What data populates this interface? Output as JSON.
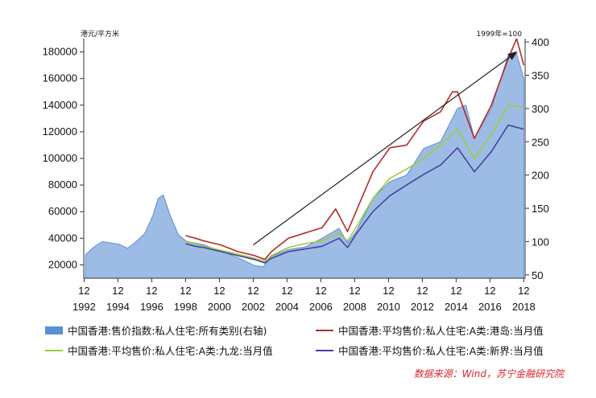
{
  "chart_data": {
    "type": "line",
    "left_axis_unit": "港元/平方米",
    "right_axis_unit": "1999年=100",
    "ylim_left": [
      10000,
      190000
    ],
    "ylim_right": [
      45,
      405
    ],
    "yticks_left": [
      20000,
      40000,
      60000,
      80000,
      100000,
      120000,
      140000,
      160000,
      180000
    ],
    "yticks_right": [
      50,
      100,
      150,
      200,
      250,
      300,
      350,
      400
    ],
    "xlim": [
      1992.9,
      2019.0
    ],
    "xticks": [
      {
        "x": 1992.92,
        "month": "12",
        "year": "1992"
      },
      {
        "x": 1994.92,
        "month": "12",
        "year": "1994"
      },
      {
        "x": 1996.92,
        "month": "12",
        "year": "1996"
      },
      {
        "x": 1998.92,
        "month": "12",
        "year": "1998"
      },
      {
        "x": 2000.92,
        "month": "12",
        "year": "2000"
      },
      {
        "x": 2002.92,
        "month": "12",
        "year": "2002"
      },
      {
        "x": 2004.92,
        "month": "12",
        "year": "2004"
      },
      {
        "x": 2006.92,
        "month": "12",
        "year": "2006"
      },
      {
        "x": 2008.92,
        "month": "12",
        "year": "2008"
      },
      {
        "x": 2010.92,
        "month": "12",
        "year": "2010"
      },
      {
        "x": 2012.92,
        "month": "12",
        "year": "2012"
      },
      {
        "x": 2014.92,
        "month": "12",
        "year": "2014"
      },
      {
        "x": 2016.92,
        "month": "12",
        "year": "2016"
      },
      {
        "x": 2018.92,
        "month": "12",
        "year": "2018"
      }
    ],
    "series": [
      {
        "name": "中国香港:售价指数:私人住宅:所有类别(右轴)",
        "kind": "area",
        "axis": "right",
        "color": "#5b8fd4",
        "x": [
          1993.0,
          1993.5,
          1994.0,
          1994.5,
          1995.0,
          1995.5,
          1996.0,
          1996.5,
          1997.0,
          1997.3,
          1997.6,
          1998.0,
          1998.5,
          1999.0,
          1999.5,
          2000.0,
          2001.0,
          2002.0,
          2003.0,
          2003.5,
          2004.0,
          2005.0,
          2006.0,
          2007.0,
          2008.0,
          2008.5,
          2009.0,
          2010.0,
          2011.0,
          2012.0,
          2013.0,
          2014.0,
          2015.0,
          2015.5,
          2016.0,
          2017.0,
          2018.0,
          2018.5,
          2018.92
        ],
        "values": [
          80,
          92,
          100,
          98,
          96,
          90,
          100,
          112,
          140,
          165,
          170,
          140,
          110,
          100,
          98,
          95,
          86,
          76,
          64,
          62,
          78,
          88,
          92,
          105,
          120,
          98,
          115,
          165,
          190,
          200,
          240,
          250,
          300,
          305,
          255,
          300,
          380,
          382,
          345
        ]
      },
      {
        "name": "中国香港:平均售价:私人住宅:A类:港岛:当月值",
        "kind": "line",
        "axis": "left",
        "color": "#b52a2a",
        "x": [
          1998.92,
          1999.5,
          2000.0,
          2001.0,
          2002.0,
          2003.0,
          2003.6,
          2004.0,
          2005.0,
          2006.0,
          2007.0,
          2007.8,
          2008.5,
          2009.0,
          2010.0,
          2011.0,
          2012.0,
          2013.0,
          2014.0,
          2014.7,
          2015.0,
          2016.0,
          2017.0,
          2018.0,
          2018.5,
          2018.92
        ],
        "values": [
          42000,
          40000,
          38000,
          35000,
          30000,
          27000,
          24000,
          30000,
          40000,
          44000,
          48000,
          62000,
          45000,
          60000,
          90000,
          108000,
          110000,
          128000,
          135000,
          150000,
          150000,
          115000,
          140000,
          175000,
          190000,
          170000
        ]
      },
      {
        "name": "中国香港:平均售价:私人住宅:A类:九龙:当月值",
        "kind": "line",
        "axis": "left",
        "color": "#9ccc3c",
        "x": [
          1998.92,
          1999.5,
          2000.0,
          2001.0,
          2002.0,
          2003.0,
          2003.6,
          2004.0,
          2005.0,
          2006.0,
          2007.0,
          2008.0,
          2008.5,
          2009.0,
          2010.0,
          2011.0,
          2012.0,
          2013.0,
          2014.0,
          2015.0,
          2016.0,
          2017.0,
          2018.0,
          2018.92
        ],
        "values": [
          38000,
          36000,
          34000,
          31000,
          28000,
          25000,
          22500,
          27000,
          33000,
          36000,
          38000,
          44000,
          38000,
          48000,
          70000,
          85000,
          92000,
          100000,
          110000,
          122000,
          100000,
          118000,
          140000,
          138000
        ]
      },
      {
        "name": "中国香港:平均售价:私人住宅:A类:新界:当月值",
        "kind": "line",
        "axis": "left",
        "color": "#4a3f9e",
        "x": [
          1998.92,
          1999.5,
          2000.0,
          2001.0,
          2002.0,
          2003.0,
          2003.6,
          2004.0,
          2005.0,
          2006.0,
          2007.0,
          2008.0,
          2008.5,
          2009.0,
          2010.0,
          2011.0,
          2012.0,
          2013.0,
          2014.0,
          2015.0,
          2016.0,
          2017.0,
          2018.0,
          2018.92
        ],
        "values": [
          36000,
          34000,
          33000,
          30000,
          27000,
          24000,
          21500,
          25000,
          30000,
          32000,
          34000,
          40000,
          33000,
          43000,
          60000,
          72000,
          80000,
          88000,
          95000,
          108000,
          90000,
          105000,
          125000,
          122000
        ]
      }
    ],
    "arrow": {
      "from": {
        "x": 2002.92,
        "y": 35000
      },
      "to": {
        "x": 2018.5,
        "y": 180000
      }
    },
    "source_note": "数据来源：Wind，苏宁金融研究院"
  }
}
